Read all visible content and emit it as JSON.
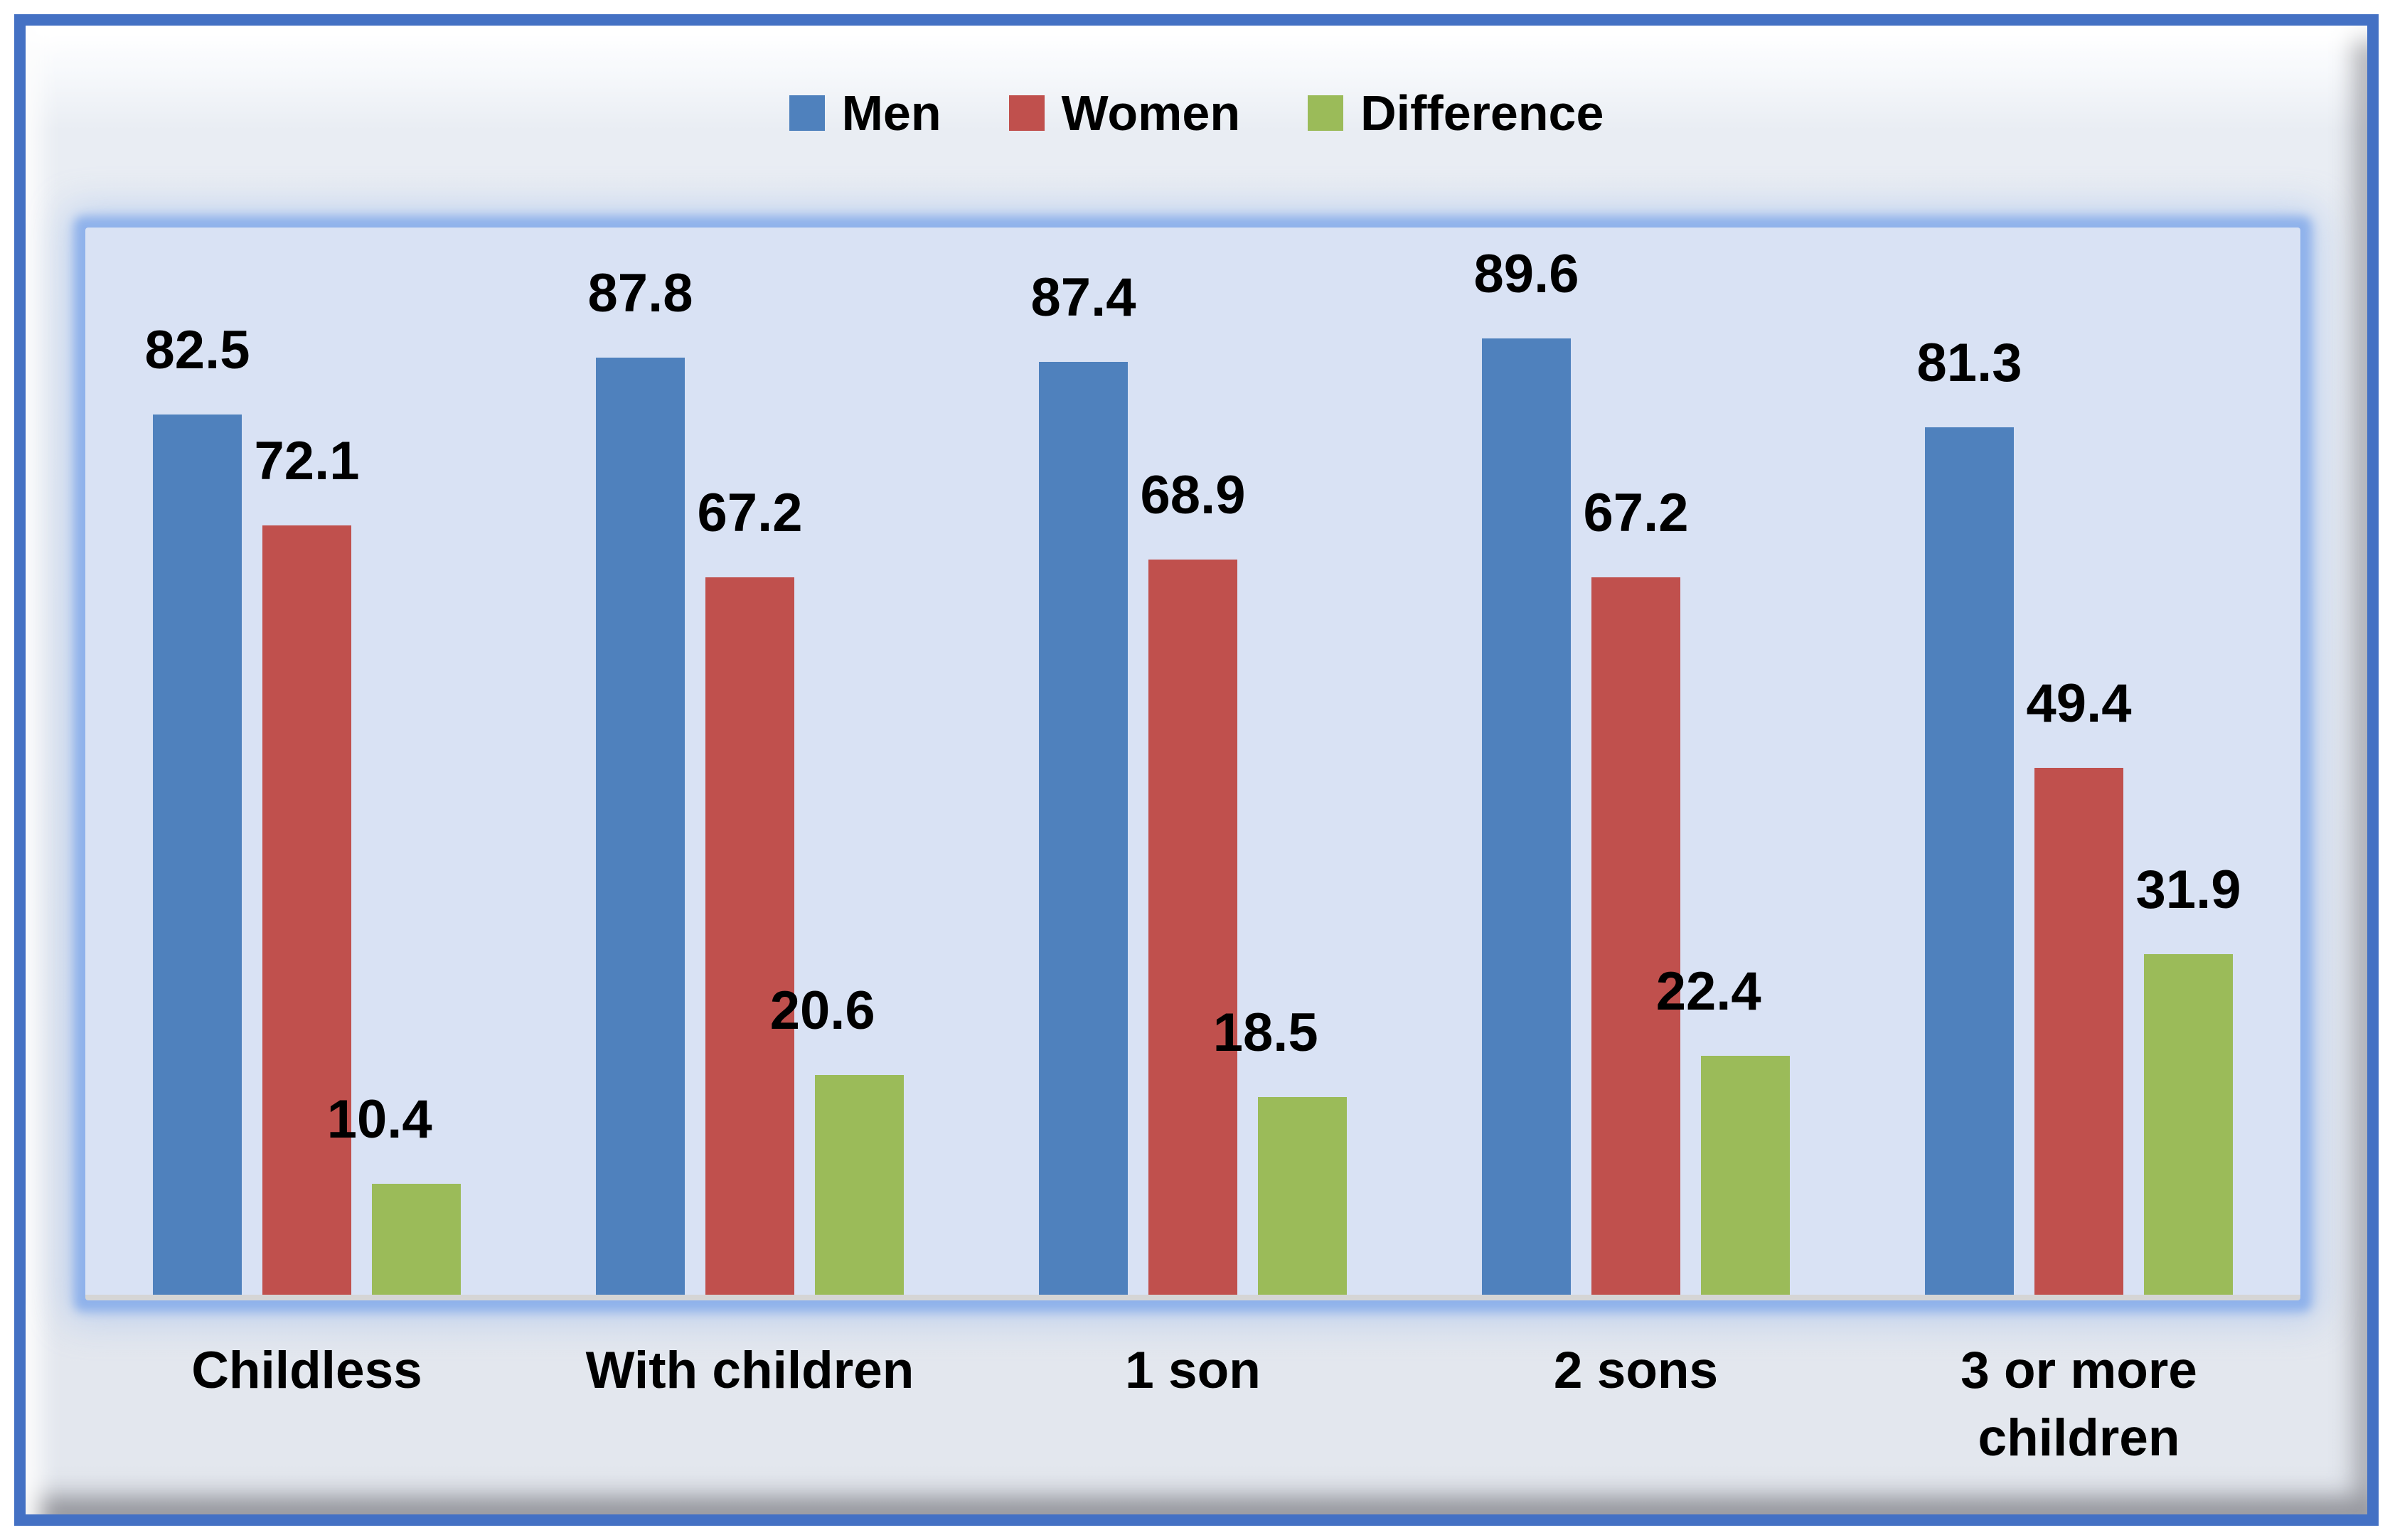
{
  "chart_data": {
    "type": "bar",
    "title": "",
    "xlabel": "",
    "ylabel": "",
    "ylim": [
      0,
      100
    ],
    "grid": false,
    "legend_position": "top",
    "data_labels": true,
    "categories": [
      "Childless",
      "With children",
      "1 son",
      "2 sons",
      "3 or more children"
    ],
    "series": [
      {
        "name": "Men",
        "color": "#4F81BD",
        "values": [
          82.5,
          87.8,
          87.4,
          89.6,
          81.3
        ]
      },
      {
        "name": "Women",
        "color": "#C0504D",
        "values": [
          72.1,
          67.2,
          68.9,
          67.2,
          49.4
        ]
      },
      {
        "name": "Difference",
        "color": "#9BBB59",
        "values": [
          10.4,
          20.6,
          18.5,
          22.4,
          31.9
        ]
      }
    ]
  },
  "styles": {
    "frame_border": "#4471C4",
    "panel_background": "#E4E8EF",
    "plot_background": "#D9E2F4",
    "plot_glow": "#8FB2EB",
    "axis_line": "#D5D5D5",
    "label_color": "#000000"
  }
}
